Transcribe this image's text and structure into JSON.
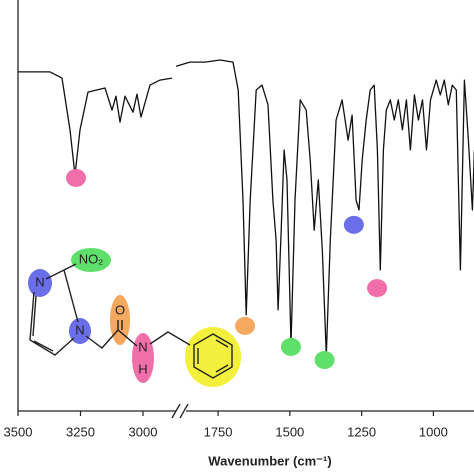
{
  "chart_data": [
    {
      "type": "line",
      "xlim": [
        3500,
        2880
      ],
      "ylim": [
        0,
        100
      ],
      "xticks": [
        3500,
        3250,
        3000
      ],
      "x": [
        3500,
        3372,
        3324,
        3292,
        3272,
        3252,
        3220,
        3152,
        3124,
        3108,
        3092,
        3072,
        3040,
        3024,
        3008,
        2972,
        2932,
        2884
      ],
      "series": [
        {
          "color": "#111111",
          "values": [
            82.5,
            82.5,
            81.0,
            68.4,
            57.4,
            68.4,
            77.6,
            78.6,
            73.2,
            76.6,
            70.3,
            76.6,
            72.7,
            77.1,
            71.5,
            79.3,
            80.5,
            81.0
          ]
        }
      ],
      "markers": [
        {
          "x": 3268,
          "y": 56.7,
          "color": "#f06fa8"
        }
      ]
    },
    {
      "type": "line",
      "xlim": [
        1900,
        855
      ],
      "ylim": [
        0,
        100
      ],
      "xticks": [
        1750,
        1500,
        1250,
        1000
      ],
      "xlabel": "Wavenumber (cm⁻¹)",
      "x": [
        1896,
        1848,
        1795,
        1743,
        1698,
        1680,
        1663,
        1652,
        1638,
        1617,
        1597,
        1576,
        1559,
        1548,
        1541,
        1530,
        1520,
        1510,
        1496,
        1482,
        1464,
        1443,
        1429,
        1415,
        1401,
        1387,
        1373,
        1359,
        1339,
        1318,
        1297,
        1283,
        1269,
        1259,
        1248,
        1234,
        1220,
        1206,
        1195,
        1185,
        1174,
        1164,
        1150,
        1136,
        1122,
        1108,
        1094,
        1080,
        1066,
        1052,
        1038,
        1024,
        1010,
        990,
        976,
        962,
        948,
        934,
        920,
        906,
        892,
        878,
        864,
        857
      ],
      "series": [
        {
          "color": "#111111",
          "values": [
            83.9,
            84.9,
            84.9,
            85.4,
            84.9,
            78.1,
            51.3,
            23.4,
            51.3,
            78.1,
            79.3,
            74.5,
            51.3,
            41.6,
            24.6,
            44.0,
            63.5,
            56.2,
            16.1,
            51.3,
            75.7,
            73.2,
            61.1,
            44.0,
            56.2,
            39.2,
            13.6,
            41.6,
            70.8,
            75.7,
            65.9,
            72.0,
            51.3,
            48.9,
            61.1,
            70.8,
            78.1,
            79.3,
            63.5,
            34.3,
            63.5,
            73.2,
            75.7,
            70.8,
            75.7,
            68.4,
            75.7,
            63.5,
            76.9,
            70.8,
            75.7,
            63.5,
            75.7,
            80.5,
            76.9,
            80.5,
            74.5,
            79.3,
            78.1,
            34.3,
            80.5,
            65.9,
            48.9,
            63.5
          ]
        }
      ],
      "markers": [
        {
          "x": 1656,
          "y": 20.7,
          "color": "#f5a860"
        },
        {
          "x": 1496,
          "y": 15.6,
          "color": "#5ee06a"
        },
        {
          "x": 1379,
          "y": 12.4,
          "color": "#5ee06a"
        },
        {
          "x": 1277,
          "y": 45.3,
          "color": "#6a6ee8"
        },
        {
          "x": 1196,
          "y": 29.9,
          "color": "#f06fa8"
        }
      ]
    }
  ],
  "molecule": {
    "labels": [
      "N",
      "NO₂",
      "N",
      "O",
      "N",
      "H"
    ]
  }
}
